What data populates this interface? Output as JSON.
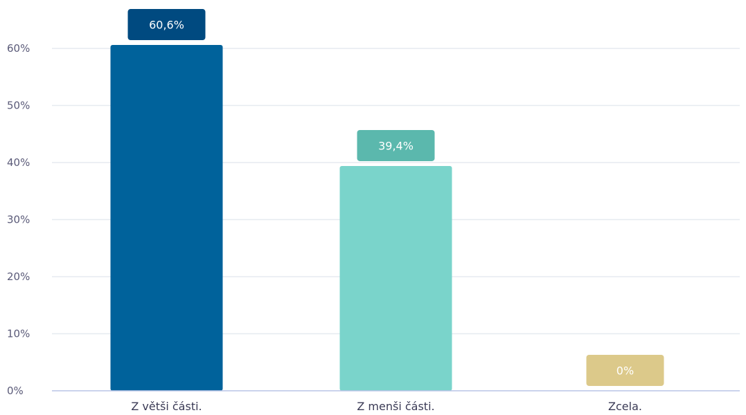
{
  "chart_data": {
    "type": "bar",
    "title": "",
    "xlabel": "",
    "ylabel": "",
    "categories": [
      "Z větši části.",
      "Z menši části.",
      "Zcela."
    ],
    "values": [
      60.6,
      39.4,
      0
    ],
    "value_labels": [
      "60,6%",
      "39,4%",
      "0%"
    ],
    "ylim": [
      0,
      60
    ],
    "yticks": [
      0,
      10,
      20,
      30,
      40,
      50,
      60
    ],
    "ytick_labels": [
      "0%",
      "10%",
      "20%",
      "30%",
      "40%",
      "50%",
      "60%"
    ],
    "grid": true,
    "legend": "none",
    "bar_colors": [
      "#00629b",
      "#7ad4cb",
      "#e3d191"
    ],
    "label_colors": [
      "#004a80",
      "#5bb8ad",
      "#dcc98a"
    ],
    "gridline_color": "#e6eaf0",
    "axis_color": "#b8c4e6"
  }
}
